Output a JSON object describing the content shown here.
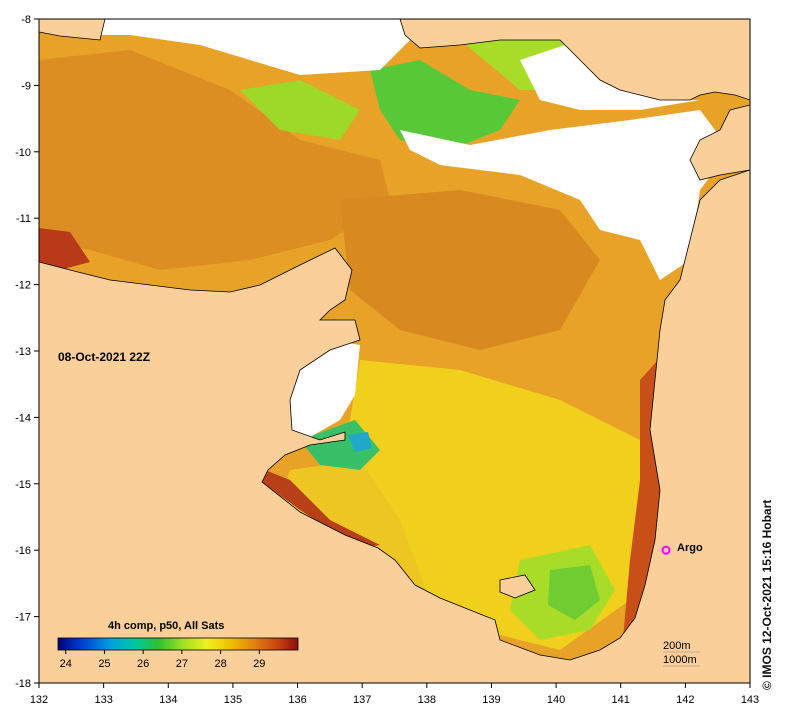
{
  "map": {
    "timestamp": "08-Oct-2021 22Z",
    "credit": "© IMOS 12-Oct-2021 15:16 Hobart",
    "lon_ticks": [
      132,
      133,
      134,
      135,
      136,
      137,
      138,
      139,
      140,
      141,
      142,
      143
    ],
    "lat_ticks": [
      -8,
      -9,
      -10,
      -11,
      -12,
      -13,
      -14,
      -15,
      -16,
      -17,
      -18
    ],
    "lat_tick_labels": [
      "-8",
      "-9",
      "-10",
      "-11",
      "-12",
      "-13",
      "-14",
      "-15",
      "-16",
      "-17",
      "-18"
    ],
    "lon_tick_labels": [
      "132",
      "133",
      "134",
      "135",
      "136",
      "137",
      "138",
      "139",
      "140",
      "141",
      "142",
      "143"
    ],
    "colors": {
      "land": "#fbcf9a",
      "no_data": "#ffffff",
      "coast": "#000000"
    }
  },
  "colorbar": {
    "title": "4h comp, p50, All Sats",
    "tick_values": [
      24,
      25,
      26,
      27,
      28,
      29
    ],
    "tick_labels": [
      "24",
      "25",
      "26",
      "27",
      "28",
      "29"
    ],
    "range": [
      23.8,
      30.0
    ],
    "stops": [
      "#000080",
      "#0040d0",
      "#00a0e0",
      "#00c8a0",
      "#30c030",
      "#a0e020",
      "#f0f020",
      "#f0c000",
      "#e08010",
      "#c84010",
      "#8a1010"
    ]
  },
  "marker": {
    "label": "Argo",
    "lon": 141.7,
    "lat": -16.0,
    "color": "#ff00ff"
  },
  "contour_legend": {
    "line1": "200m",
    "line2": "1000m"
  }
}
